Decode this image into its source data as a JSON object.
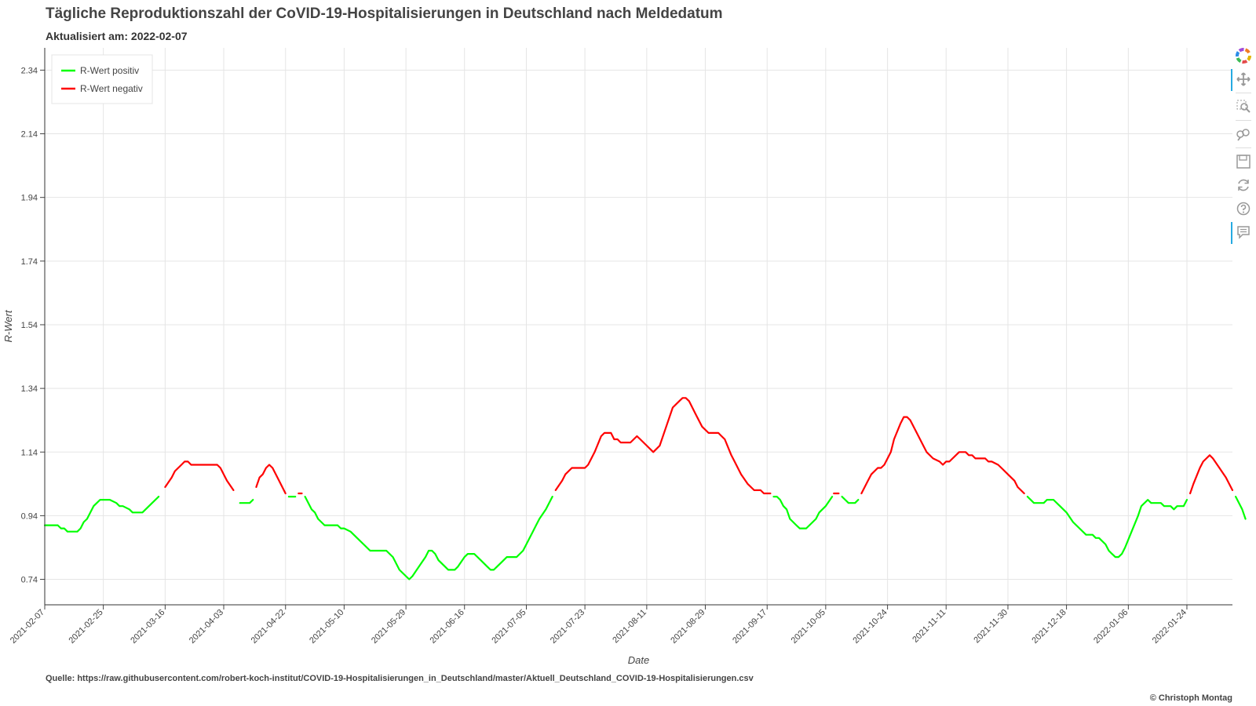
{
  "title": "Tägliche Reproduktionszahl der CoVID-19-Hospitalisierungen in Deutschland nach Meldedatum",
  "subtitle": "Aktualisiert am: 2022-02-07",
  "source": "Quelle: https://raw.githubusercontent.com/robert-koch-institut/COVID-19-Hospitalisierungen_in_Deutschland/master/Aktuell_Deutschland_COVID-19-Hospitalisierungen.csv",
  "credit": "© Christoph Montag",
  "toolbar": {
    "items": [
      {
        "name": "bokeh-logo-icon"
      },
      {
        "name": "pan-icon"
      },
      {
        "name": "box-zoom-icon"
      },
      {
        "name": "wheel-zoom-icon"
      },
      {
        "name": "save-icon"
      },
      {
        "name": "reset-icon"
      },
      {
        "name": "help-icon"
      },
      {
        "name": "hover-icon"
      }
    ]
  },
  "chart_data": {
    "type": "line",
    "title": "Tägliche Reproduktionszahl der CoVID-19-Hospitalisierungen in Deutschland nach Meldedatum",
    "xlabel": "Date",
    "ylabel": "R-Wert",
    "x_start": "2021-02-07",
    "x_end": "2022-02-07",
    "ylim": [
      0.66,
      2.41
    ],
    "yticks": [
      0.74,
      0.94,
      1.14,
      1.34,
      1.54,
      1.74,
      1.94,
      2.14,
      2.34
    ],
    "xticks": [
      "2021-02-07",
      "2021-02-25",
      "2021-03-16",
      "2021-04-03",
      "2021-04-22",
      "2021-05-10",
      "2021-05-29",
      "2021-06-16",
      "2021-07-05",
      "2021-07-23",
      "2021-08-11",
      "2021-08-29",
      "2021-09-17",
      "2021-10-05",
      "2021-10-24",
      "2021-11-11",
      "2021-11-30",
      "2021-12-18",
      "2022-01-06",
      "2022-01-24"
    ],
    "threshold": 1.0,
    "grid": true,
    "legend_position": "top-left",
    "series": [
      {
        "name": "R-Wert positiv",
        "color": "#00ff00"
      },
      {
        "name": "R-Wert negativ",
        "color": "#ff0000"
      }
    ],
    "values": [
      [
        0,
        0.91
      ],
      [
        4,
        0.91
      ],
      [
        5,
        0.9
      ],
      [
        6,
        0.9
      ],
      [
        7,
        0.89
      ],
      [
        10,
        0.89
      ],
      [
        11,
        0.9
      ],
      [
        12,
        0.92
      ],
      [
        13,
        0.93
      ],
      [
        15,
        0.97
      ],
      [
        17,
        0.99
      ],
      [
        20,
        0.99
      ],
      [
        22,
        0.98
      ],
      [
        23,
        0.97
      ],
      [
        24,
        0.97
      ],
      [
        26,
        0.96
      ],
      [
        27,
        0.95
      ],
      [
        30,
        0.95
      ],
      [
        31,
        0.96
      ],
      [
        33,
        0.98
      ],
      [
        35,
        1.0
      ],
      [
        37,
        1.03
      ],
      [
        39,
        1.06
      ],
      [
        40,
        1.08
      ],
      [
        42,
        1.1
      ],
      [
        43,
        1.11
      ],
      [
        44,
        1.11
      ],
      [
        45,
        1.1
      ],
      [
        53,
        1.1
      ],
      [
        54,
        1.09
      ],
      [
        55,
        1.07
      ],
      [
        56,
        1.05
      ],
      [
        58,
        1.02
      ],
      [
        60,
        0.98
      ],
      [
        63,
        0.98
      ],
      [
        64,
        0.99
      ],
      [
        65,
        1.03
      ],
      [
        66,
        1.06
      ],
      [
        67,
        1.07
      ],
      [
        68,
        1.09
      ],
      [
        69,
        1.1
      ],
      [
        70,
        1.09
      ],
      [
        72,
        1.05
      ],
      [
        73,
        1.03
      ],
      [
        74,
        1.01
      ],
      [
        75,
        1.0
      ],
      [
        76,
        1.0
      ],
      [
        77,
        1.0
      ],
      [
        78,
        1.01
      ],
      [
        79,
        1.01
      ],
      [
        80,
        1.0
      ],
      [
        81,
        0.98
      ],
      [
        82,
        0.96
      ],
      [
        83,
        0.95
      ],
      [
        84,
        0.93
      ],
      [
        86,
        0.91
      ],
      [
        90,
        0.91
      ],
      [
        91,
        0.9
      ],
      [
        92,
        0.9
      ],
      [
        94,
        0.89
      ],
      [
        96,
        0.87
      ],
      [
        98,
        0.85
      ],
      [
        100,
        0.83
      ],
      [
        105,
        0.83
      ],
      [
        107,
        0.81
      ],
      [
        109,
        0.77
      ],
      [
        111,
        0.75
      ],
      [
        112,
        0.74
      ],
      [
        113,
        0.75
      ],
      [
        115,
        0.78
      ],
      [
        117,
        0.81
      ],
      [
        118,
        0.83
      ],
      [
        119,
        0.83
      ],
      [
        120,
        0.82
      ],
      [
        121,
        0.8
      ],
      [
        123,
        0.78
      ],
      [
        124,
        0.77
      ],
      [
        126,
        0.77
      ],
      [
        127,
        0.78
      ],
      [
        129,
        0.81
      ],
      [
        130,
        0.82
      ],
      [
        132,
        0.82
      ],
      [
        134,
        0.8
      ],
      [
        136,
        0.78
      ],
      [
        137,
        0.77
      ],
      [
        138,
        0.77
      ],
      [
        139,
        0.78
      ],
      [
        141,
        0.8
      ],
      [
        142,
        0.81
      ],
      [
        145,
        0.81
      ],
      [
        147,
        0.83
      ],
      [
        148,
        0.85
      ],
      [
        150,
        0.89
      ],
      [
        151,
        0.91
      ],
      [
        152,
        0.93
      ],
      [
        154,
        0.96
      ],
      [
        156,
        1.0
      ],
      [
        157,
        1.02
      ],
      [
        159,
        1.05
      ],
      [
        160,
        1.07
      ],
      [
        162,
        1.09
      ],
      [
        166,
        1.09
      ],
      [
        167,
        1.1
      ],
      [
        169,
        1.14
      ],
      [
        171,
        1.19
      ],
      [
        172,
        1.2
      ],
      [
        174,
        1.2
      ],
      [
        175,
        1.18
      ],
      [
        176,
        1.18
      ],
      [
        177,
        1.17
      ],
      [
        180,
        1.17
      ],
      [
        182,
        1.19
      ],
      [
        183,
        1.18
      ],
      [
        185,
        1.16
      ],
      [
        187,
        1.14
      ],
      [
        189,
        1.16
      ],
      [
        191,
        1.22
      ],
      [
        193,
        1.28
      ],
      [
        195,
        1.3
      ],
      [
        196,
        1.31
      ],
      [
        197,
        1.31
      ],
      [
        198,
        1.3
      ],
      [
        200,
        1.26
      ],
      [
        202,
        1.22
      ],
      [
        204,
        1.2
      ],
      [
        207,
        1.2
      ],
      [
        208,
        1.19
      ],
      [
        209,
        1.18
      ],
      [
        211,
        1.13
      ],
      [
        212,
        1.11
      ],
      [
        214,
        1.07
      ],
      [
        216,
        1.04
      ],
      [
        218,
        1.02
      ],
      [
        220,
        1.02
      ],
      [
        221,
        1.01
      ],
      [
        223,
        1.01
      ],
      [
        224,
        1.0
      ],
      [
        225,
        1.0
      ],
      [
        226,
        0.99
      ],
      [
        227,
        0.97
      ],
      [
        228,
        0.96
      ],
      [
        229,
        0.93
      ],
      [
        231,
        0.91
      ],
      [
        232,
        0.9
      ],
      [
        234,
        0.9
      ],
      [
        236,
        0.92
      ],
      [
        237,
        0.93
      ],
      [
        238,
        0.95
      ],
      [
        240,
        0.97
      ],
      [
        242,
        1.0
      ],
      [
        242.5,
        1.01
      ],
      [
        244,
        1.01
      ],
      [
        245,
        1.0
      ],
      [
        246,
        0.99
      ],
      [
        247,
        0.98
      ],
      [
        249,
        0.98
      ],
      [
        250,
        0.99
      ],
      [
        251,
        1.01
      ],
      [
        253,
        1.05
      ],
      [
        254,
        1.07
      ],
      [
        256,
        1.09
      ],
      [
        257,
        1.09
      ],
      [
        258,
        1.1
      ],
      [
        260,
        1.14
      ],
      [
        261,
        1.18
      ],
      [
        263,
        1.23
      ],
      [
        264,
        1.25
      ],
      [
        265,
        1.25
      ],
      [
        266,
        1.24
      ],
      [
        268,
        1.2
      ],
      [
        270,
        1.16
      ],
      [
        271,
        1.14
      ],
      [
        273,
        1.12
      ],
      [
        275,
        1.11
      ],
      [
        276,
        1.1
      ],
      [
        277,
        1.11
      ],
      [
        278,
        1.11
      ],
      [
        280,
        1.13
      ],
      [
        281,
        1.14
      ],
      [
        283,
        1.14
      ],
      [
        284,
        1.13
      ],
      [
        285,
        1.13
      ],
      [
        286,
        1.12
      ],
      [
        289,
        1.12
      ],
      [
        290,
        1.11
      ],
      [
        291,
        1.11
      ],
      [
        293,
        1.1
      ],
      [
        294,
        1.09
      ],
      [
        296,
        1.07
      ],
      [
        298,
        1.05
      ],
      [
        299,
        1.03
      ],
      [
        301,
        1.01
      ],
      [
        302,
        1.0
      ],
      [
        304,
        0.98
      ],
      [
        307,
        0.98
      ],
      [
        308,
        0.99
      ],
      [
        310,
        0.99
      ],
      [
        312,
        0.97
      ],
      [
        314,
        0.95
      ],
      [
        316,
        0.92
      ],
      [
        318,
        0.9
      ],
      [
        320,
        0.88
      ],
      [
        322,
        0.88
      ],
      [
        323,
        0.87
      ],
      [
        324,
        0.87
      ],
      [
        326,
        0.85
      ],
      [
        327,
        0.83
      ],
      [
        328,
        0.82
      ],
      [
        329,
        0.81
      ],
      [
        330,
        0.81
      ],
      [
        331,
        0.82
      ],
      [
        332,
        0.84
      ],
      [
        334,
        0.89
      ],
      [
        336,
        0.94
      ],
      [
        337,
        0.97
      ],
      [
        339,
        0.99
      ],
      [
        340,
        0.98
      ],
      [
        343,
        0.98
      ],
      [
        344,
        0.97
      ],
      [
        346,
        0.97
      ],
      [
        347,
        0.96
      ],
      [
        348,
        0.97
      ],
      [
        350,
        0.97
      ],
      [
        351,
        0.99
      ],
      [
        352,
        1.01
      ],
      [
        353,
        1.04
      ],
      [
        355,
        1.09
      ],
      [
        356,
        1.11
      ],
      [
        357,
        1.12
      ],
      [
        358,
        1.13
      ],
      [
        359,
        1.12
      ],
      [
        361,
        1.09
      ],
      [
        363,
        1.06
      ],
      [
        365,
        1.02
      ],
      [
        366,
        1.0
      ],
      [
        367,
        0.98
      ],
      [
        368,
        0.96
      ],
      [
        369,
        0.93
      ]
    ]
  }
}
